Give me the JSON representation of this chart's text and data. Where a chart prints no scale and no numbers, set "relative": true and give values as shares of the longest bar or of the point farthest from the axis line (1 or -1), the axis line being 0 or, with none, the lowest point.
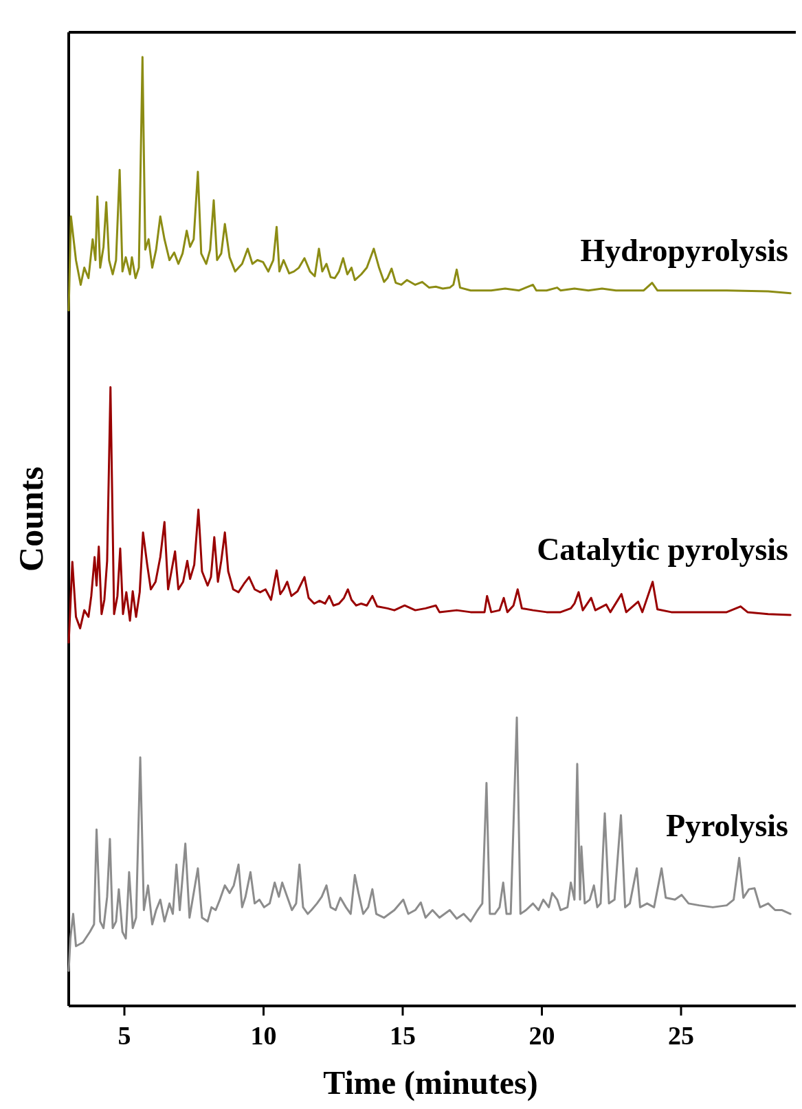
{
  "chart_data": {
    "type": "line",
    "relative": true,
    "xlabel": "Time (minutes)",
    "ylabel": "Counts",
    "xlim": [
      3,
      29
    ],
    "xticks": [
      5,
      10,
      15,
      20,
      25
    ],
    "grid": false,
    "legend": false,
    "marker": "none",
    "line_style": "solid",
    "series": [
      {
        "name": "Hydropyrolysis",
        "color": "#8c8c14",
        "x": [
          3.0,
          3.08,
          3.26,
          3.43,
          3.56,
          3.71,
          3.86,
          3.96,
          4.03,
          4.13,
          4.25,
          4.35,
          4.45,
          4.58,
          4.7,
          4.83,
          4.93,
          5.05,
          5.2,
          5.27,
          5.4,
          5.52,
          5.65,
          5.75,
          5.87,
          6.0,
          6.14,
          6.29,
          6.44,
          6.62,
          6.79,
          6.94,
          7.09,
          7.24,
          7.36,
          7.49,
          7.64,
          7.76,
          7.94,
          8.08,
          8.21,
          8.33,
          8.48,
          8.61,
          8.78,
          8.98,
          9.23,
          9.43,
          9.6,
          9.78,
          9.98,
          10.17,
          10.35,
          10.47,
          10.57,
          10.72,
          10.92,
          11.09,
          11.27,
          11.47,
          11.67,
          11.84,
          11.99,
          12.11,
          12.26,
          12.41,
          12.56,
          12.71,
          12.86,
          13.01,
          13.16,
          13.28,
          13.51,
          13.71,
          13.96,
          14.15,
          14.33,
          14.45,
          14.6,
          14.75,
          14.95,
          15.15,
          15.45,
          15.7,
          15.95,
          16.19,
          16.44,
          16.69,
          16.82,
          16.94,
          17.06,
          17.44,
          18.18,
          18.68,
          19.18,
          19.68,
          19.8,
          20.17,
          20.55,
          20.67,
          21.17,
          21.67,
          22.16,
          22.66,
          23.16,
          23.66,
          23.96,
          24.15,
          25.15,
          26.64,
          28.13,
          28.93
        ],
        "values": [
          0.733,
          0.832,
          0.786,
          0.76,
          0.778,
          0.767,
          0.808,
          0.786,
          0.853,
          0.778,
          0.8,
          0.847,
          0.786,
          0.771,
          0.786,
          0.881,
          0.774,
          0.789,
          0.771,
          0.789,
          0.767,
          0.778,
          1.0,
          0.797,
          0.808,
          0.778,
          0.797,
          0.832,
          0.808,
          0.786,
          0.794,
          0.782,
          0.793,
          0.817,
          0.8,
          0.808,
          0.879,
          0.793,
          0.782,
          0.797,
          0.849,
          0.786,
          0.793,
          0.824,
          0.789,
          0.774,
          0.782,
          0.798,
          0.782,
          0.786,
          0.784,
          0.774,
          0.786,
          0.821,
          0.774,
          0.786,
          0.772,
          0.774,
          0.778,
          0.788,
          0.774,
          0.769,
          0.798,
          0.774,
          0.782,
          0.768,
          0.767,
          0.774,
          0.788,
          0.771,
          0.778,
          0.765,
          0.771,
          0.778,
          0.798,
          0.778,
          0.763,
          0.767,
          0.777,
          0.762,
          0.76,
          0.765,
          0.76,
          0.763,
          0.757,
          0.758,
          0.756,
          0.757,
          0.76,
          0.776,
          0.757,
          0.754,
          0.754,
          0.756,
          0.754,
          0.76,
          0.754,
          0.754,
          0.757,
          0.754,
          0.756,
          0.754,
          0.756,
          0.754,
          0.754,
          0.754,
          0.762,
          0.754,
          0.754,
          0.754,
          0.753,
          0.751
        ]
      },
      {
        "name": "Catalytic pyrolysis",
        "color": "#990000",
        "x": [
          3.0,
          3.13,
          3.26,
          3.41,
          3.56,
          3.71,
          3.81,
          3.93,
          4.0,
          4.08,
          4.18,
          4.28,
          4.38,
          4.5,
          4.63,
          4.75,
          4.85,
          4.95,
          5.07,
          5.2,
          5.3,
          5.42,
          5.55,
          5.67,
          5.82,
          5.95,
          6.12,
          6.29,
          6.44,
          6.57,
          6.69,
          6.82,
          6.94,
          7.11,
          7.26,
          7.36,
          7.51,
          7.66,
          7.79,
          7.99,
          8.11,
          8.23,
          8.36,
          8.48,
          8.61,
          8.73,
          8.91,
          9.1,
          9.3,
          9.48,
          9.68,
          9.88,
          10.07,
          10.27,
          10.47,
          10.6,
          10.72,
          10.85,
          11.0,
          11.22,
          11.47,
          11.62,
          11.82,
          12.01,
          12.21,
          12.36,
          12.51,
          12.71,
          12.89,
          13.03,
          13.16,
          13.33,
          13.51,
          13.71,
          13.91,
          14.08,
          14.45,
          14.7,
          15.07,
          15.45,
          15.82,
          16.19,
          16.32,
          16.94,
          17.44,
          17.94,
          18.03,
          18.18,
          18.48,
          18.63,
          18.76,
          18.98,
          19.13,
          19.28,
          19.68,
          20.17,
          20.67,
          21.04,
          21.17,
          21.32,
          21.47,
          21.77,
          21.92,
          22.31,
          22.46,
          22.86,
          23.03,
          23.46,
          23.61,
          23.98,
          24.15,
          24.65,
          25.65,
          26.64,
          27.14,
          27.39,
          28.13,
          28.93
        ],
        "values": [
          0.383,
          0.468,
          0.41,
          0.398,
          0.417,
          0.41,
          0.432,
          0.473,
          0.443,
          0.484,
          0.413,
          0.428,
          0.469,
          0.652,
          0.413,
          0.432,
          0.482,
          0.413,
          0.436,
          0.406,
          0.437,
          0.41,
          0.436,
          0.499,
          0.465,
          0.439,
          0.447,
          0.473,
          0.51,
          0.439,
          0.458,
          0.479,
          0.439,
          0.447,
          0.469,
          0.45,
          0.465,
          0.523,
          0.458,
          0.443,
          0.452,
          0.494,
          0.447,
          0.469,
          0.499,
          0.458,
          0.439,
          0.436,
          0.445,
          0.452,
          0.439,
          0.436,
          0.439,
          0.428,
          0.459,
          0.434,
          0.439,
          0.447,
          0.432,
          0.437,
          0.452,
          0.43,
          0.424,
          0.427,
          0.424,
          0.432,
          0.422,
          0.424,
          0.43,
          0.439,
          0.428,
          0.422,
          0.424,
          0.422,
          0.432,
          0.421,
          0.419,
          0.417,
          0.422,
          0.417,
          0.419,
          0.422,
          0.415,
          0.417,
          0.415,
          0.415,
          0.432,
          0.415,
          0.417,
          0.43,
          0.415,
          0.422,
          0.439,
          0.419,
          0.417,
          0.415,
          0.415,
          0.419,
          0.424,
          0.436,
          0.417,
          0.43,
          0.417,
          0.423,
          0.415,
          0.434,
          0.415,
          0.426,
          0.415,
          0.447,
          0.418,
          0.415,
          0.415,
          0.415,
          0.421,
          0.415,
          0.413,
          0.412
        ]
      },
      {
        "name": "Pyrolysis",
        "color": "#8c8c8c",
        "x": [
          3.0,
          3.06,
          3.16,
          3.26,
          3.51,
          3.76,
          3.91,
          4.0,
          4.13,
          4.25,
          4.38,
          4.48,
          4.58,
          4.7,
          4.8,
          4.93,
          5.05,
          5.17,
          5.3,
          5.42,
          5.57,
          5.7,
          5.85,
          6.0,
          6.14,
          6.29,
          6.44,
          6.62,
          6.74,
          6.87,
          6.99,
          7.19,
          7.34,
          7.49,
          7.64,
          7.79,
          7.99,
          8.13,
          8.28,
          8.43,
          8.61,
          8.78,
          8.93,
          9.1,
          9.23,
          9.35,
          9.53,
          9.68,
          9.85,
          10.02,
          10.22,
          10.4,
          10.55,
          10.67,
          10.85,
          11.02,
          11.17,
          11.29,
          11.42,
          11.59,
          11.72,
          11.92,
          12.09,
          12.26,
          12.41,
          12.59,
          12.76,
          12.96,
          13.13,
          13.28,
          13.41,
          13.58,
          13.76,
          13.91,
          14.05,
          14.33,
          14.7,
          15.02,
          15.2,
          15.45,
          15.65,
          15.82,
          16.07,
          16.32,
          16.69,
          16.94,
          17.19,
          17.44,
          17.69,
          17.86,
          18.01,
          18.13,
          18.31,
          18.48,
          18.61,
          18.73,
          18.88,
          19.1,
          19.23,
          19.43,
          19.68,
          19.88,
          20.05,
          20.25,
          20.37,
          20.55,
          20.67,
          20.92,
          21.04,
          21.17,
          21.27,
          21.37,
          21.42,
          21.54,
          21.72,
          21.87,
          21.99,
          22.11,
          22.26,
          22.41,
          22.61,
          22.84,
          22.99,
          23.16,
          23.41,
          23.53,
          23.78,
          24.03,
          24.3,
          24.45,
          24.78,
          25.02,
          25.27,
          25.65,
          26.14,
          26.64,
          26.89,
          27.09,
          27.24,
          27.44,
          27.64,
          27.84,
          28.13,
          28.38,
          28.63,
          28.93
        ],
        "values": [
          0.037,
          0.071,
          0.097,
          0.063,
          0.067,
          0.078,
          0.086,
          0.186,
          0.089,
          0.082,
          0.115,
          0.176,
          0.082,
          0.089,
          0.123,
          0.078,
          0.071,
          0.141,
          0.082,
          0.093,
          0.262,
          0.101,
          0.127,
          0.086,
          0.101,
          0.112,
          0.089,
          0.108,
          0.097,
          0.149,
          0.101,
          0.171,
          0.093,
          0.119,
          0.145,
          0.093,
          0.089,
          0.104,
          0.101,
          0.112,
          0.127,
          0.119,
          0.127,
          0.149,
          0.104,
          0.115,
          0.141,
          0.108,
          0.112,
          0.104,
          0.108,
          0.13,
          0.115,
          0.13,
          0.115,
          0.101,
          0.108,
          0.149,
          0.104,
          0.097,
          0.101,
          0.108,
          0.115,
          0.127,
          0.104,
          0.101,
          0.114,
          0.104,
          0.097,
          0.138,
          0.119,
          0.097,
          0.104,
          0.123,
          0.097,
          0.093,
          0.101,
          0.112,
          0.097,
          0.101,
          0.109,
          0.093,
          0.101,
          0.093,
          0.101,
          0.092,
          0.097,
          0.089,
          0.101,
          0.108,
          0.235,
          0.097,
          0.097,
          0.104,
          0.13,
          0.097,
          0.097,
          0.304,
          0.097,
          0.101,
          0.108,
          0.101,
          0.112,
          0.104,
          0.119,
          0.112,
          0.101,
          0.104,
          0.13,
          0.112,
          0.255,
          0.112,
          0.168,
          0.108,
          0.112,
          0.127,
          0.104,
          0.108,
          0.203,
          0.108,
          0.112,
          0.201,
          0.104,
          0.108,
          0.145,
          0.104,
          0.108,
          0.104,
          0.145,
          0.114,
          0.112,
          0.117,
          0.108,
          0.106,
          0.104,
          0.106,
          0.112,
          0.156,
          0.114,
          0.123,
          0.124,
          0.104,
          0.108,
          0.101,
          0.101,
          0.097
        ]
      }
    ]
  }
}
